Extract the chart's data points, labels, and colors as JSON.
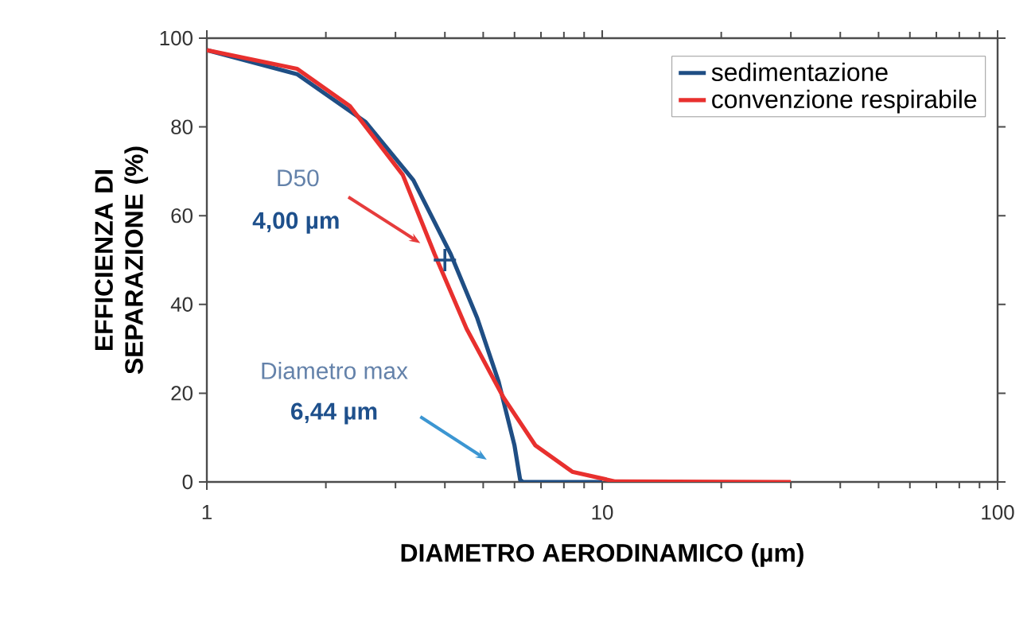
{
  "chart_data": {
    "type": "line",
    "xlabel": "DIAMETRO AERODINAMICO (µm)",
    "ylabel": "EFFICIENZA DI SEPARAZIONE (%)",
    "log": "x",
    "xlim": [
      1,
      100
    ],
    "xticks": [
      1,
      10,
      100
    ],
    "ylim": [
      0,
      100
    ],
    "yticks": [
      0,
      20,
      40,
      60,
      80,
      100
    ],
    "grid": false,
    "legend": "top right",
    "marker": "none",
    "line_style": "solid",
    "series": [
      {
        "name": "sedimentazione",
        "color": "#1f4e84",
        "x": [
          1,
          1.69,
          2.52,
          3.33,
          4.14,
          4.83,
          5.47,
          6.0,
          6.2,
          6.3,
          10
        ],
        "values": [
          97.3,
          91.9,
          81.1,
          68,
          51.3,
          36.9,
          22.6,
          8.2,
          0.5,
          0,
          0
        ]
      },
      {
        "name": "convenzione respirabile",
        "color": "#e8302e",
        "x": [
          1,
          1.69,
          2.3,
          3.13,
          3.77,
          4.54,
          5.63,
          6.78,
          8.4,
          10.8,
          30
        ],
        "values": [
          97.3,
          93.1,
          84.7,
          69.2,
          51.3,
          34.5,
          19,
          8.2,
          2.3,
          0.1,
          0
        ]
      },
      {
        "type": "scatter",
        "marker": "cross",
        "color": "#1f4e84",
        "x": [
          4
        ],
        "values": [
          50
        ]
      }
    ],
    "annotations": [
      "D50",
      "4,00 µm",
      "Diametro max",
      "6,44 µm"
    ]
  }
}
